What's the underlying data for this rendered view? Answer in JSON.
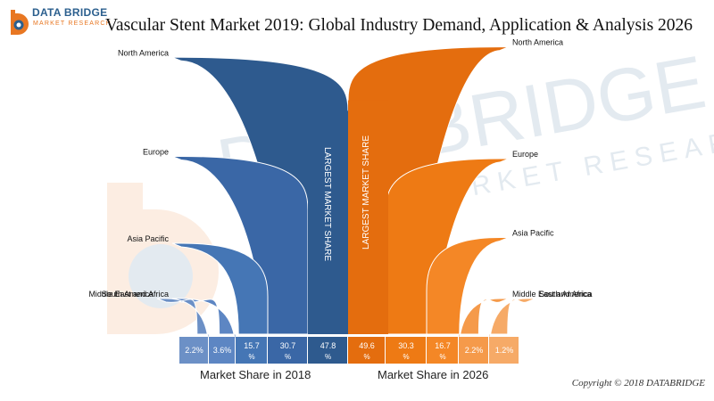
{
  "header": {
    "logo_name": "DATA BRIDGE",
    "logo_tagline": "MARKET RESEARCH"
  },
  "watermark": {
    "line1": "DATA BRIDGE",
    "line2": "MARKET RESEARCH"
  },
  "footer": {
    "copyright": "Copyright © 2018 DATABRIDGE"
  },
  "chart_data": {
    "type": "bar",
    "title": "Vascular Stent Market 2019: Global Industry Demand, Application & Analysis 2026",
    "largest_label": "LARGEST MARKET SHARE",
    "series": [
      {
        "name": "Market Share in 2018",
        "color": "#2e5a8e",
        "categories": [
          "South America",
          "Middle East and Africa",
          "Asia Pacific",
          "Europe",
          "North America"
        ],
        "value_labels": [
          "2.2%",
          "3.6%",
          "15.7 %",
          "30.7 %",
          "47.8 %"
        ],
        "values": [
          2.2,
          3.6,
          15.7,
          30.7,
          47.8
        ]
      },
      {
        "name": "Market Share in 2026",
        "color": "#e8730e",
        "categories": [
          "North America",
          "Europe",
          "Asia Pacific",
          "Middle East and Africa",
          "South America"
        ],
        "value_labels": [
          "49.6 %",
          "30.3 %",
          "16.7 %",
          "2.2%",
          "1.2%"
        ],
        "values": [
          49.6,
          30.3,
          16.7,
          2.2,
          1.2
        ]
      }
    ]
  }
}
